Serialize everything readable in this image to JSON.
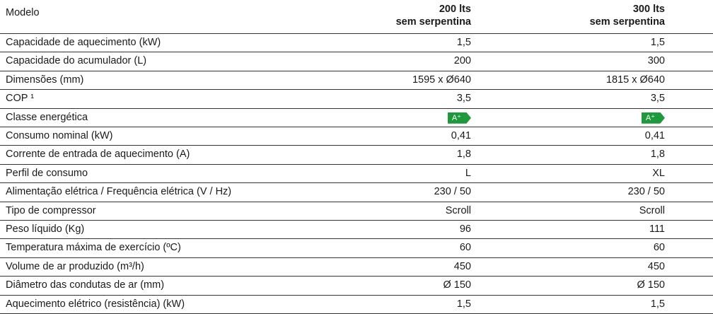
{
  "table": {
    "header": [
      "Modelo",
      [
        "200 lts",
        "sem serpentina"
      ],
      [
        "300 lts",
        "sem serpentina"
      ]
    ],
    "rows": [
      [
        "Capacidade de aquecimento (kW)",
        "1,5",
        "1,5"
      ],
      [
        "Capacidade do acumulador (L)",
        "200",
        "300"
      ],
      [
        "Dimensões (mm)",
        "1595 x Ø640",
        "1815 x Ø640"
      ],
      [
        "COP ¹",
        "3,5",
        "3,5"
      ],
      [
        "Classe energética",
        "A⁺",
        "A⁺"
      ],
      [
        "Consumo nominal (kW)",
        "0,41",
        "0,41"
      ],
      [
        "Corrente de entrada de aquecimento (A)",
        "1,8",
        "1,8"
      ],
      [
        "Perfil de consumo",
        "L",
        "XL"
      ],
      [
        "Alimentação elétrica / Frequência elétrica (V / Hz)",
        "230 / 50",
        "230 / 50"
      ],
      [
        "Tipo de compressor",
        "Scroll",
        "Scroll"
      ],
      [
        "Peso líquido (Kg)",
        "96",
        "111"
      ],
      [
        "Temperatura máxima de exercício (ºC)",
        "60",
        "60"
      ],
      [
        "Volume de ar produzido (m³/h)",
        "450",
        "450"
      ],
      [
        "Diâmetro das condutas de ar (mm)",
        "Ø 150",
        "Ø 150"
      ],
      [
        "Aquecimento elétrico (resistência) (kW)",
        "1,5",
        "1,5"
      ]
    ]
  }
}
